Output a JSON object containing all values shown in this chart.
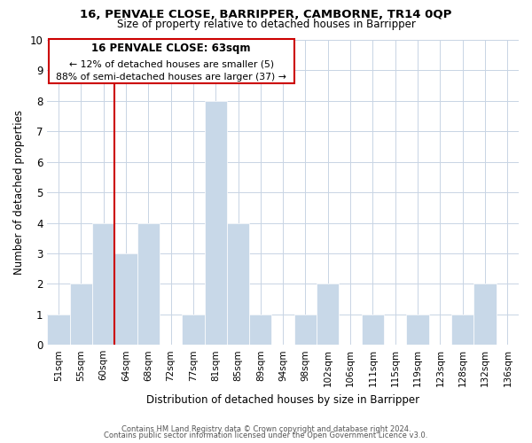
{
  "title": "16, PENVALE CLOSE, BARRIPPER, CAMBORNE, TR14 0QP",
  "subtitle": "Size of property relative to detached houses in Barripper",
  "xlabel": "Distribution of detached houses by size in Barripper",
  "ylabel": "Number of detached properties",
  "bar_color": "#c8d8e8",
  "bar_edge_color": "#ffffff",
  "grid_color": "#c8d4e4",
  "annotation_box_color": "#ffffff",
  "annotation_border_color": "#cc0000",
  "vline_color": "#cc0000",
  "vline_x_index": 3,
  "annotation_title": "16 PENVALE CLOSE: 63sqm",
  "annotation_line1": "← 12% of detached houses are smaller (5)",
  "annotation_line2": "88% of semi-detached houses are larger (37) →",
  "categories": [
    "51sqm",
    "55sqm",
    "60sqm",
    "64sqm",
    "68sqm",
    "72sqm",
    "77sqm",
    "81sqm",
    "85sqm",
    "89sqm",
    "94sqm",
    "98sqm",
    "102sqm",
    "106sqm",
    "111sqm",
    "115sqm",
    "119sqm",
    "123sqm",
    "128sqm",
    "132sqm",
    "136sqm"
  ],
  "values": [
    1,
    2,
    4,
    3,
    4,
    0,
    1,
    8,
    4,
    1,
    0,
    1,
    2,
    0,
    1,
    0,
    1,
    0,
    1,
    2,
    0
  ],
  "ylim": [
    0,
    10
  ],
  "yticks": [
    0,
    1,
    2,
    3,
    4,
    5,
    6,
    7,
    8,
    9,
    10
  ],
  "footnote1": "Contains HM Land Registry data © Crown copyright and database right 2024.",
  "footnote2": "Contains public sector information licensed under the Open Government Licence v3.0."
}
